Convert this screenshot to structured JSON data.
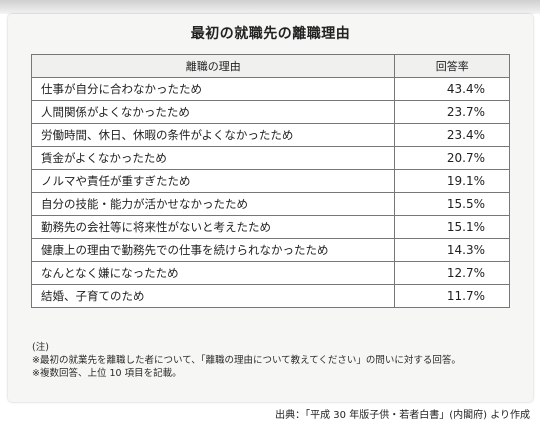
{
  "header": {
    "title": "最初の就職先の離職理由"
  },
  "table": {
    "columns": [
      "離職の理由",
      "回答率"
    ],
    "rows": [
      {
        "reason": "仕事が自分に合わなかったため",
        "rate": "43.4%"
      },
      {
        "reason": "人間関係がよくなかったため",
        "rate": "23.7%"
      },
      {
        "reason": "労働時間、休日、休暇の条件がよくなかったため",
        "rate": "23.4%"
      },
      {
        "reason": "賃金がよくなかったため",
        "rate": "20.7%"
      },
      {
        "reason": "ノルマや責任が重すぎたため",
        "rate": "19.1%"
      },
      {
        "reason": "自分の技能・能力が活かせなかったため",
        "rate": "15.5%"
      },
      {
        "reason": "勤務先の会社等に将来性がないと考えたため",
        "rate": "15.1%"
      },
      {
        "reason": "健康上の理由で勤務先での仕事を続けられなかったため",
        "rate": "14.3%"
      },
      {
        "reason": "なんとなく嫌になったため",
        "rate": "12.7%"
      },
      {
        "reason": "結婚、子育てのため",
        "rate": "11.7%"
      }
    ]
  },
  "notes": {
    "heading": "(注)",
    "lines": [
      "※最初の就業先を離職した者について、「離職の理由について教えてください」の問いに対する回答。",
      "※複数回答、上位 10 項目を記載。"
    ]
  },
  "source": "出典：「平成 30 年版子供・若者白書」(内閣府) より作成"
}
